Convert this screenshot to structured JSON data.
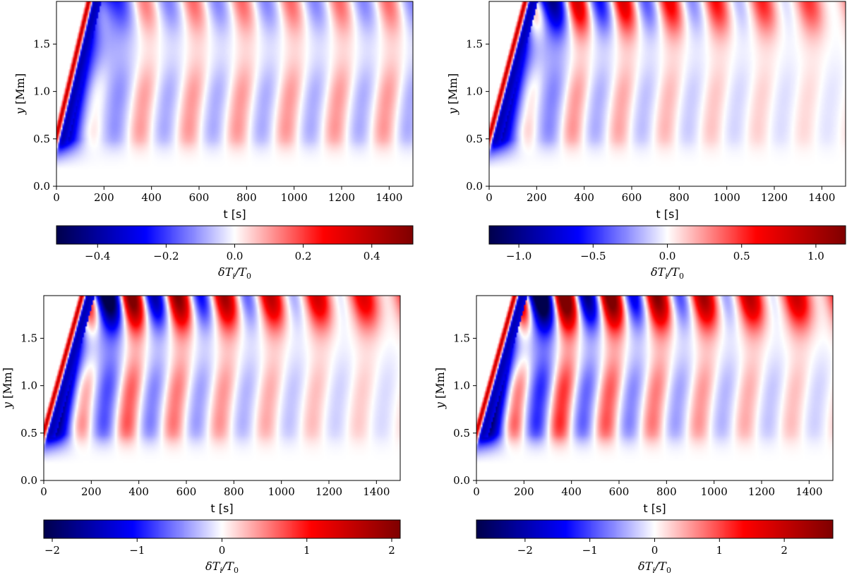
{
  "figure_title": "",
  "colormap": {
    "name": "seismic",
    "stops": [
      "#00004c",
      "#0000ff",
      "#ffffff",
      "#ff0000",
      "#7f0000"
    ]
  },
  "chart_data": [
    {
      "type": "heatmap",
      "panel": "top-left",
      "xlabel": "t [s]",
      "ylabel": "y [Mm]",
      "xlim": [
        0,
        1500
      ],
      "ylim": [
        0.0,
        1.95
      ],
      "xticks": [
        0,
        200,
        400,
        600,
        800,
        1000,
        1200,
        1400
      ],
      "xtick_labels": [
        "0",
        "200",
        "400",
        "600",
        "800",
        "1000",
        "1200",
        "1400"
      ],
      "yticks": [
        0.0,
        0.5,
        1.0,
        1.5
      ],
      "ytick_labels": [
        "0.0",
        "0.5",
        "1.0",
        "1.5"
      ],
      "colorbar": {
        "label": "δTi/T0",
        "label_main": "δT",
        "label_sub1": "i",
        "label_div": "/T",
        "label_sub2": "0",
        "range": [
          -0.52,
          0.52
        ],
        "ticks": [
          -0.4,
          -0.2,
          0.0,
          0.2,
          0.4
        ],
        "tick_labels": [
          "−0.4",
          "−0.2",
          "0.0",
          "0.2",
          "0.4"
        ]
      },
      "field": {
        "period_s": 205,
        "top_amplitude": 0.33,
        "mid_amplitude": 0.22,
        "front_speed_mm_per_s": 0.0105,
        "damping_time_s": 0,
        "peak_times_s": [
          370,
          580,
          790,
          1000,
          1200,
          1400
        ]
      }
    },
    {
      "type": "heatmap",
      "panel": "top-right",
      "xlabel": "t [s]",
      "ylabel": "y [Mm]",
      "xlim": [
        0,
        1500
      ],
      "ylim": [
        0.0,
        1.95
      ],
      "xticks": [
        0,
        200,
        400,
        600,
        800,
        1000,
        1200,
        1400
      ],
      "xtick_labels": [
        "0",
        "200",
        "400",
        "600",
        "800",
        "1000",
        "1200",
        "1400"
      ],
      "yticks": [
        0.0,
        0.5,
        1.0,
        1.5
      ],
      "ytick_labels": [
        "0.0",
        "0.5",
        "1.0",
        "1.5"
      ],
      "colorbar": {
        "label": "δTi/T0",
        "label_main": "δT",
        "label_sub1": "i",
        "label_div": "/T",
        "label_sub2": "0",
        "range": [
          -1.2,
          1.2
        ],
        "ticks": [
          -1.0,
          -0.5,
          0.0,
          0.5,
          1.0
        ],
        "tick_labels": [
          "−1.0",
          "−0.5",
          "0.0",
          "0.5",
          "1.0"
        ]
      },
      "field": {
        "period_s": 195,
        "top_amplitude": 0.85,
        "mid_amplitude": 0.25,
        "front_speed_mm_per_s": 0.0095,
        "damping_time_s": 900,
        "peak_times_s": [
          390,
          580,
          780,
          980
        ]
      }
    },
    {
      "type": "heatmap",
      "panel": "bottom-left",
      "xlabel": "t [s]",
      "ylabel": "y [Mm]",
      "xlim": [
        0,
        1500
      ],
      "ylim": [
        0.0,
        1.95
      ],
      "xticks": [
        0,
        200,
        400,
        600,
        800,
        1000,
        1200,
        1400
      ],
      "xtick_labels": [
        "0",
        "200",
        "400",
        "600",
        "800",
        "1000",
        "1200",
        "1400"
      ],
      "yticks": [
        0.0,
        0.5,
        1.0,
        1.5
      ],
      "ytick_labels": [
        "0.0",
        "0.5",
        "1.0",
        "1.5"
      ],
      "colorbar": {
        "label": "δTi/T0",
        "label_main": "δT",
        "label_sub1": "i",
        "label_div": "/T",
        "label_sub2": "0",
        "range": [
          -2.1,
          2.1
        ],
        "ticks": [
          -2,
          -1,
          0,
          1,
          2
        ],
        "tick_labels": [
          "−2",
          "−1",
          "0",
          "1",
          "2"
        ]
      },
      "field": {
        "period_s": 195,
        "top_amplitude": 1.4,
        "mid_amplitude": 0.4,
        "front_speed_mm_per_s": 0.009,
        "damping_time_s": 800,
        "peak_times_s": [
          390,
          580,
          780,
          970
        ]
      }
    },
    {
      "type": "heatmap",
      "panel": "bottom-right",
      "xlabel": "t [s]",
      "ylabel": "y [Mm]",
      "xlim": [
        0,
        1500
      ],
      "ylim": [
        0.0,
        1.95
      ],
      "xticks": [
        0,
        200,
        400,
        600,
        800,
        1000,
        1200,
        1400
      ],
      "xtick_labels": [
        "0",
        "200",
        "400",
        "600",
        "800",
        "1000",
        "1200",
        "1400"
      ],
      "yticks": [
        0.0,
        0.5,
        1.0,
        1.5
      ],
      "ytick_labels": [
        "0.0",
        "0.5",
        "1.0",
        "1.5"
      ],
      "colorbar": {
        "label": "δTi/T0",
        "label_main": "δT",
        "label_sub1": "i",
        "label_div": "/T",
        "label_sub2": "0",
        "range": [
          -2.75,
          2.75
        ],
        "ticks": [
          -2,
          -1,
          0,
          1,
          2
        ],
        "tick_labels": [
          "−2",
          "−1",
          "0",
          "1",
          "2"
        ]
      },
      "field": {
        "period_s": 195,
        "top_amplitude": 1.6,
        "mid_amplitude": 0.5,
        "front_speed_mm_per_s": 0.009,
        "damping_time_s": 800,
        "peak_times_s": [
          390,
          580,
          780,
          970
        ]
      }
    }
  ]
}
